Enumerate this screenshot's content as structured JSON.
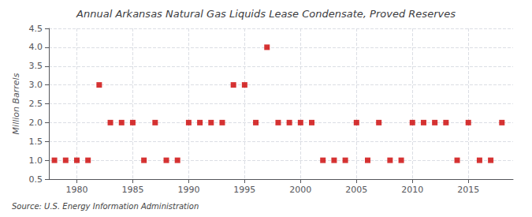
{
  "chart_data": {
    "type": "scatter",
    "title": "Annual Arkansas Natural Gas Liquids Lease Condensate, Proved Reserves",
    "ylabel": "Million Barrels",
    "annotations": [
      "Source: U.S. Energy Information Administration"
    ],
    "x": [
      1978,
      1979,
      1980,
      1981,
      1982,
      1983,
      1984,
      1985,
      1986,
      1987,
      1988,
      1989,
      1990,
      1991,
      1992,
      1993,
      1994,
      1995,
      1996,
      1997,
      1998,
      1999,
      2000,
      2001,
      2002,
      2003,
      2004,
      2005,
      2006,
      2007,
      2008,
      2009,
      2010,
      2011,
      2012,
      2013,
      2014,
      2015,
      2016,
      2017,
      2018
    ],
    "values": [
      1,
      1,
      1,
      1,
      3,
      2,
      2,
      2,
      1,
      2,
      1,
      1,
      2,
      2,
      2,
      2,
      3,
      3,
      2,
      4,
      2,
      2,
      2,
      2,
      1,
      1,
      1,
      2,
      1,
      2,
      1,
      1,
      2,
      2,
      2,
      2,
      1,
      2,
      1,
      1,
      2
    ],
    "color": "#cc0000",
    "marker": "square",
    "xlim": [
      1977.5,
      2019
    ],
    "xticks": [
      1980,
      1985,
      1990,
      1995,
      2000,
      2005,
      2010,
      2015
    ],
    "ylim": [
      0.5,
      4.5
    ],
    "yticks": [
      0.5,
      {
        "value": 1.0,
        "label": "1.0"
      },
      1.5,
      {
        "value": 2.0,
        "label": "2.0"
      },
      2.5,
      {
        "value": 3.0,
        "label": "3.0"
      },
      3.5,
      {
        "value": 4.0,
        "label": "4.0"
      },
      4.5
    ],
    "grid": true
  }
}
